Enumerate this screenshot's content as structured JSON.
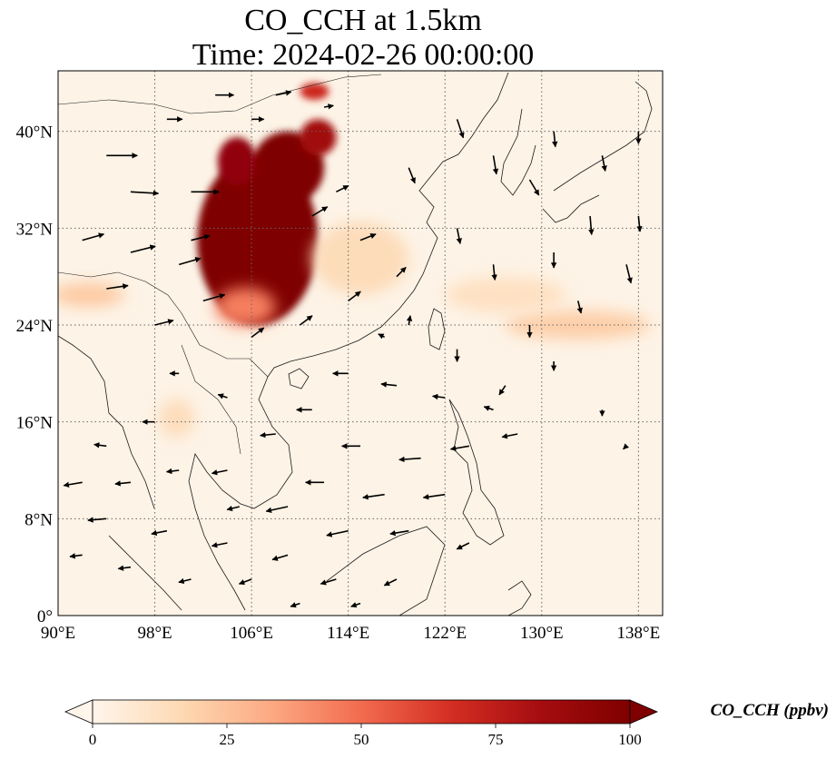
{
  "title": {
    "line1": "CO_CCH at 1.5km",
    "line2": "Time: 2024-02-26 00:00:00"
  },
  "map": {
    "extent": {
      "lon_min": 90,
      "lon_max": 140,
      "lat_min": 0,
      "lat_max": 45
    },
    "gridlines": "dotted",
    "lon_ticks": [
      {
        "value": 90,
        "label": "90°E"
      },
      {
        "value": 98,
        "label": "98°E"
      },
      {
        "value": 106,
        "label": "106°E"
      },
      {
        "value": 114,
        "label": "114°E"
      },
      {
        "value": 122,
        "label": "122°E"
      },
      {
        "value": 130,
        "label": "130°E"
      },
      {
        "value": 138,
        "label": "138°E"
      }
    ],
    "lat_ticks": [
      {
        "value": 0,
        "label": "0°"
      },
      {
        "value": 8,
        "label": "8°N"
      },
      {
        "value": 16,
        "label": "16°N"
      },
      {
        "value": 24,
        "label": "24°N"
      },
      {
        "value": 32,
        "label": "32°N"
      },
      {
        "value": 40,
        "label": "40°N"
      }
    ],
    "concentration_patches": [
      {
        "lon": 106.5,
        "lat": 31.0,
        "rx": 5.0,
        "ry": 7.0,
        "value": 100
      },
      {
        "lon": 109.0,
        "lat": 37.0,
        "rx": 3.0,
        "ry": 3.0,
        "value": 100
      },
      {
        "lon": 104.8,
        "lat": 37.5,
        "rx": 1.6,
        "ry": 2.0,
        "value": 92
      },
      {
        "lon": 111.5,
        "lat": 39.5,
        "rx": 1.5,
        "ry": 1.5,
        "value": 85
      },
      {
        "lon": 111.2,
        "lat": 43.3,
        "rx": 1.2,
        "ry": 0.7,
        "value": 70
      },
      {
        "lon": 105.5,
        "lat": 25.5,
        "rx": 2.5,
        "ry": 1.6,
        "value": 45
      },
      {
        "lon": 99.8,
        "lat": 16.3,
        "rx": 1.5,
        "ry": 1.6,
        "value": 14
      },
      {
        "lon": 92.5,
        "lat": 26.5,
        "rx": 3.0,
        "ry": 1.0,
        "value": 22
      },
      {
        "lon": 115.0,
        "lat": 29.5,
        "rx": 4.0,
        "ry": 3.0,
        "value": 15
      },
      {
        "lon": 133.0,
        "lat": 24.0,
        "rx": 6.0,
        "ry": 1.2,
        "value": 20
      },
      {
        "lon": 127.0,
        "lat": 26.5,
        "rx": 5.0,
        "ry": 1.5,
        "value": 12
      }
    ],
    "wind_vectors": [
      {
        "lon": 94,
        "lat": 38,
        "u": 10,
        "v": 0
      },
      {
        "lon": 96,
        "lat": 35,
        "u": 9,
        "v": -0.5
      },
      {
        "lon": 101,
        "lat": 35,
        "u": 9,
        "v": 0
      },
      {
        "lon": 92,
        "lat": 31,
        "u": 7,
        "v": 2
      },
      {
        "lon": 96,
        "lat": 30,
        "u": 8,
        "v": 2
      },
      {
        "lon": 100,
        "lat": 29,
        "u": 7,
        "v": 2
      },
      {
        "lon": 94,
        "lat": 27,
        "u": 7,
        "v": 1
      },
      {
        "lon": 98,
        "lat": 24,
        "u": 6,
        "v": 1.5
      },
      {
        "lon": 102,
        "lat": 26,
        "u": 7,
        "v": 2
      },
      {
        "lon": 101,
        "lat": 31,
        "u": 6,
        "v": 1.5
      },
      {
        "lon": 103,
        "lat": 43,
        "u": 6,
        "v": 0
      },
      {
        "lon": 108,
        "lat": 43,
        "u": 5,
        "v": 1
      },
      {
        "lon": 106,
        "lat": 41,
        "u": 4,
        "v": 0
      },
      {
        "lon": 99,
        "lat": 41,
        "u": 5,
        "v": 0
      },
      {
        "lon": 112,
        "lat": 42,
        "u": 3,
        "v": 0.5
      },
      {
        "lon": 111,
        "lat": 33,
        "u": 5,
        "v": 3
      },
      {
        "lon": 115,
        "lat": 31,
        "u": 5,
        "v": 2
      },
      {
        "lon": 113,
        "lat": 35,
        "u": 4,
        "v": 2
      },
      {
        "lon": 119,
        "lat": 37,
        "u": 2,
        "v": -5
      },
      {
        "lon": 123,
        "lat": 41,
        "u": 2,
        "v": -6
      },
      {
        "lon": 126,
        "lat": 38,
        "u": 1,
        "v": -6
      },
      {
        "lon": 129,
        "lat": 36,
        "u": 3,
        "v": -5
      },
      {
        "lon": 123,
        "lat": 32,
        "u": 1,
        "v": -5
      },
      {
        "lon": 126,
        "lat": 29,
        "u": 0.5,
        "v": -5
      },
      {
        "lon": 131,
        "lat": 30,
        "u": 0,
        "v": -5
      },
      {
        "lon": 134,
        "lat": 33,
        "u": 0.5,
        "v": -6
      },
      {
        "lon": 137,
        "lat": 29,
        "u": 1.5,
        "v": -6
      },
      {
        "lon": 131,
        "lat": 40,
        "u": 0.5,
        "v": -5
      },
      {
        "lon": 135,
        "lat": 38,
        "u": 1,
        "v": -5
      },
      {
        "lon": 138,
        "lat": 33,
        "u": 0.5,
        "v": -5
      },
      {
        "lon": 138,
        "lat": 40,
        "u": 0,
        "v": -4
      },
      {
        "lon": 133,
        "lat": 26,
        "u": 1,
        "v": -4
      },
      {
        "lon": 129,
        "lat": 24,
        "u": 0,
        "v": -4
      },
      {
        "lon": 123,
        "lat": 22,
        "u": 0,
        "v": -4
      },
      {
        "lon": 127,
        "lat": 19,
        "u": -2,
        "v": -3
      },
      {
        "lon": 131,
        "lat": 21,
        "u": 0,
        "v": -3
      },
      {
        "lon": 135,
        "lat": 17,
        "u": 0,
        "v": -2
      },
      {
        "lon": 137,
        "lat": 14,
        "u": -1,
        "v": -1
      },
      {
        "lon": 110,
        "lat": 24,
        "u": 4,
        "v": 3
      },
      {
        "lon": 114,
        "lat": 26,
        "u": 4,
        "v": 3
      },
      {
        "lon": 118,
        "lat": 28,
        "u": 3,
        "v": 3
      },
      {
        "lon": 106,
        "lat": 23,
        "u": 4,
        "v": 3
      },
      {
        "lon": 114,
        "lat": 20,
        "u": -5,
        "v": 0
      },
      {
        "lon": 118,
        "lat": 19,
        "u": -5,
        "v": 0.5
      },
      {
        "lon": 122,
        "lat": 18,
        "u": -4,
        "v": 0.5
      },
      {
        "lon": 126,
        "lat": 17,
        "u": -3,
        "v": 1
      },
      {
        "lon": 111,
        "lat": 17,
        "u": -5,
        "v": 0
      },
      {
        "lon": 108,
        "lat": 15,
        "u": -5,
        "v": -0.5
      },
      {
        "lon": 115,
        "lat": 14,
        "u": -6,
        "v": 0
      },
      {
        "lon": 120,
        "lat": 13,
        "u": -7,
        "v": -0.5
      },
      {
        "lon": 124,
        "lat": 14,
        "u": -6,
        "v": -1
      },
      {
        "lon": 128,
        "lat": 15,
        "u": -5,
        "v": -1
      },
      {
        "lon": 112,
        "lat": 11,
        "u": -6,
        "v": 0
      },
      {
        "lon": 117,
        "lat": 10,
        "u": -7,
        "v": -1
      },
      {
        "lon": 122,
        "lat": 10,
        "u": -7,
        "v": -1
      },
      {
        "lon": 109,
        "lat": 9,
        "u": -7,
        "v": -1.5
      },
      {
        "lon": 114,
        "lat": 7,
        "u": -7,
        "v": -1.5
      },
      {
        "lon": 119,
        "lat": 7,
        "u": -6,
        "v": -1
      },
      {
        "lon": 124,
        "lat": 6,
        "u": -4,
        "v": -2
      },
      {
        "lon": 104,
        "lat": 12,
        "u": -5,
        "v": -1
      },
      {
        "lon": 100,
        "lat": 12,
        "u": -4,
        "v": -0.5
      },
      {
        "lon": 96,
        "lat": 11,
        "u": -5,
        "v": -0.5
      },
      {
        "lon": 92,
        "lat": 11,
        "u": -6,
        "v": -1
      },
      {
        "lon": 94,
        "lat": 14,
        "u": -4,
        "v": 0.5
      },
      {
        "lon": 98,
        "lat": 16,
        "u": -4,
        "v": 0
      },
      {
        "lon": 94,
        "lat": 8,
        "u": -6,
        "v": -0.5
      },
      {
        "lon": 99,
        "lat": 7,
        "u": -5,
        "v": -1
      },
      {
        "lon": 104,
        "lat": 6,
        "u": -5,
        "v": -1
      },
      {
        "lon": 109,
        "lat": 5,
        "u": -5,
        "v": -1.5
      },
      {
        "lon": 113,
        "lat": 3,
        "u": -5,
        "v": -1.5
      },
      {
        "lon": 118,
        "lat": 3,
        "u": -4,
        "v": -2
      },
      {
        "lon": 106,
        "lat": 3,
        "u": -4,
        "v": -1.5
      },
      {
        "lon": 101,
        "lat": 3,
        "u": -4,
        "v": -1
      },
      {
        "lon": 96,
        "lat": 4,
        "u": -4,
        "v": -0.5
      },
      {
        "lon": 92,
        "lat": 5,
        "u": -4,
        "v": -0.5
      },
      {
        "lon": 110,
        "lat": 1,
        "u": -3,
        "v": -1
      },
      {
        "lon": 115,
        "lat": 1,
        "u": -3,
        "v": -1
      },
      {
        "lon": 105,
        "lat": 9,
        "u": -4,
        "v": -1
      },
      {
        "lon": 100,
        "lat": 20,
        "u": -3,
        "v": 0
      },
      {
        "lon": 104,
        "lat": 18,
        "u": -3,
        "v": 1
      },
      {
        "lon": 119,
        "lat": 24,
        "u": 0.5,
        "v": 3
      },
      {
        "lon": 117,
        "lat": 23,
        "u": -2,
        "v": 1
      }
    ],
    "vector_scale": 3.4
  },
  "colorbar": {
    "label": "CO_CCH (ppbv)",
    "min": 0,
    "max": 100,
    "extend": "both",
    "ticks": [
      {
        "value": 0,
        "label": "0"
      },
      {
        "value": 25,
        "label": "25"
      },
      {
        "value": 50,
        "label": "50"
      },
      {
        "value": 75,
        "label": "75"
      },
      {
        "value": 100,
        "label": "100"
      }
    ],
    "stops": [
      "#fff5eb",
      "#fee6ce",
      "#fdd0a2",
      "#fdae6b",
      "#fd8d3c",
      "#f16913",
      "#d94801",
      "#a63603",
      "#7f2704"
    ],
    "under_color": "#fff5eb",
    "over_color": "#7f2704",
    "sample_stops": [
      "#fff5eb",
      "#fdd9b3",
      "#fca982",
      "#f26b4f",
      "#d42e22",
      "#a50d10",
      "#7f0000"
    ]
  },
  "colors": {
    "background": "#fdf3e6",
    "coastline": "#1a1a1a",
    "gridline": "#666666",
    "vector": "#000000"
  }
}
